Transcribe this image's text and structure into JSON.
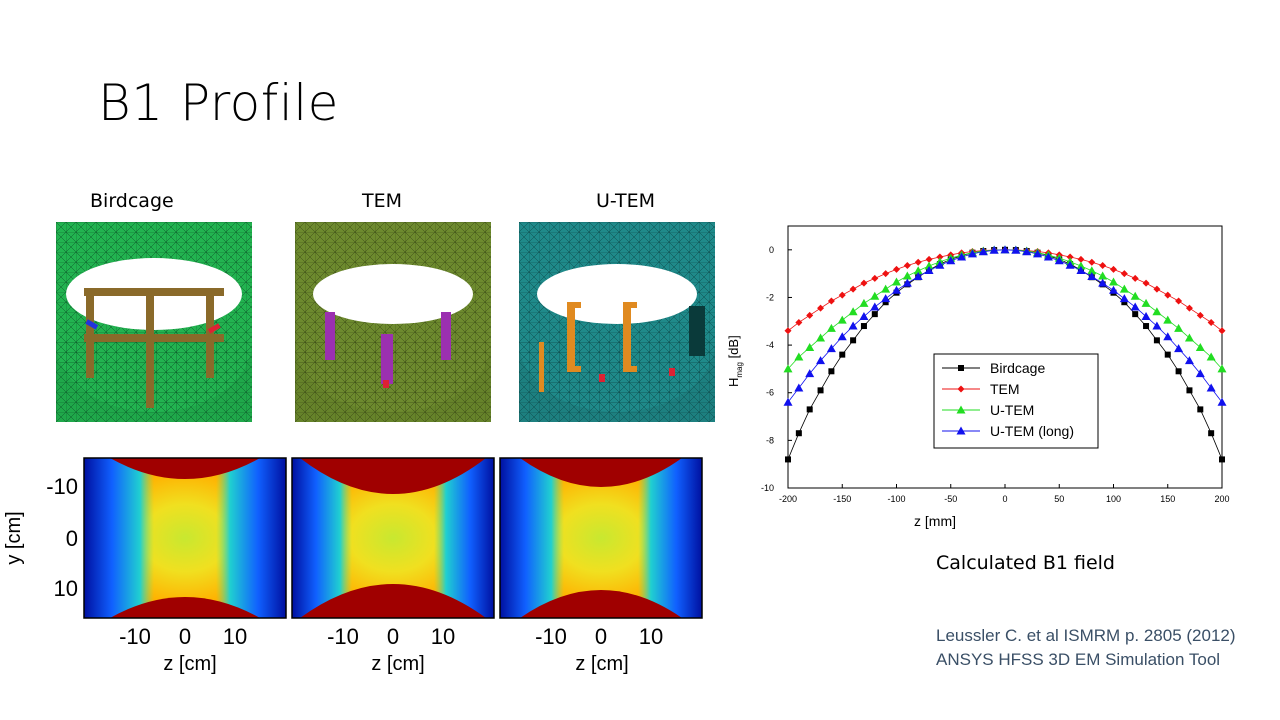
{
  "slide": {
    "title": "B1 Profile",
    "coils": [
      {
        "label": "Birdcage"
      },
      {
        "label": "TEM"
      },
      {
        "label": "U-TEM"
      }
    ],
    "maps": {
      "ylabel": "y [cm]",
      "xlabel": "z [cm]",
      "yticks": [
        "-10",
        "0",
        "10"
      ],
      "xticks": [
        "-10",
        "0",
        "10"
      ]
    },
    "caption": "Calculated B1 field",
    "references": [
      "Leussler C. et al ISMRM p. 2805 (2012)",
      "ANSYS HFSS 3D EM Simulation Tool"
    ]
  },
  "colors": {
    "birdcage": "#000000",
    "tem": "#ee1111",
    "utem": "#22dd22",
    "utem_long": "#1111ee"
  },
  "chart_data": {
    "type": "line",
    "xlabel": "z [mm]",
    "ylabel_main": "H",
    "ylabel_sub": "mag",
    "ylabel_unit": " [dB]",
    "xlim": [
      -200,
      200
    ],
    "ylim": [
      -10,
      1
    ],
    "xticks": [
      -200,
      -150,
      -100,
      -50,
      0,
      50,
      100,
      150,
      200
    ],
    "yticks": [
      0,
      -2,
      -4,
      -6,
      -8,
      -10
    ],
    "legend_position": "center-right",
    "x": [
      -200,
      -190,
      -180,
      -170,
      -160,
      -150,
      -140,
      -130,
      -120,
      -110,
      -100,
      -90,
      -80,
      -70,
      -60,
      -50,
      -40,
      -30,
      -20,
      -10,
      0,
      10,
      20,
      30,
      40,
      50,
      60,
      70,
      80,
      90,
      100,
      110,
      120,
      130,
      140,
      150,
      160,
      170,
      180,
      190,
      200
    ],
    "series": [
      {
        "name": "Birdcage",
        "marker": "square",
        "color": "#000000",
        "values": [
          -8.8,
          -7.7,
          -6.7,
          -5.9,
          -5.1,
          -4.4,
          -3.8,
          -3.2,
          -2.7,
          -2.2,
          -1.8,
          -1.45,
          -1.15,
          -0.85,
          -0.6,
          -0.4,
          -0.25,
          -0.12,
          -0.05,
          -0.01,
          0,
          -0.01,
          -0.05,
          -0.12,
          -0.25,
          -0.4,
          -0.6,
          -0.85,
          -1.15,
          -1.45,
          -1.8,
          -2.2,
          -2.7,
          -3.2,
          -3.8,
          -4.4,
          -5.1,
          -5.9,
          -6.7,
          -7.7,
          -8.8
        ]
      },
      {
        "name": "TEM",
        "marker": "diamond",
        "color": "#ee1111",
        "values": [
          -3.4,
          -3.05,
          -2.75,
          -2.45,
          -2.15,
          -1.9,
          -1.65,
          -1.4,
          -1.2,
          -1.0,
          -0.82,
          -0.66,
          -0.52,
          -0.4,
          -0.3,
          -0.21,
          -0.13,
          -0.07,
          -0.03,
          -0.01,
          0,
          -0.01,
          -0.03,
          -0.07,
          -0.13,
          -0.21,
          -0.3,
          -0.4,
          -0.52,
          -0.66,
          -0.82,
          -1.0,
          -1.2,
          -1.4,
          -1.65,
          -1.9,
          -2.15,
          -2.45,
          -2.75,
          -3.05,
          -3.4
        ]
      },
      {
        "name": "U-TEM",
        "marker": "triangle",
        "color": "#22dd22",
        "values": [
          -5.0,
          -4.5,
          -4.1,
          -3.7,
          -3.3,
          -2.95,
          -2.6,
          -2.25,
          -1.95,
          -1.65,
          -1.35,
          -1.1,
          -0.88,
          -0.68,
          -0.5,
          -0.35,
          -0.22,
          -0.12,
          -0.05,
          -0.01,
          0,
          -0.01,
          -0.05,
          -0.12,
          -0.22,
          -0.35,
          -0.5,
          -0.68,
          -0.88,
          -1.1,
          -1.35,
          -1.65,
          -1.95,
          -2.25,
          -2.6,
          -2.95,
          -3.3,
          -3.7,
          -4.1,
          -4.5,
          -5.0
        ]
      },
      {
        "name": "U-TEM (long)",
        "marker": "triangle",
        "color": "#1111ee",
        "values": [
          -6.4,
          -5.8,
          -5.2,
          -4.65,
          -4.15,
          -3.65,
          -3.2,
          -2.8,
          -2.4,
          -2.05,
          -1.7,
          -1.4,
          -1.12,
          -0.87,
          -0.65,
          -0.46,
          -0.3,
          -0.17,
          -0.08,
          -0.02,
          0,
          -0.02,
          -0.08,
          -0.17,
          -0.3,
          -0.46,
          -0.65,
          -0.87,
          -1.12,
          -1.4,
          -1.7,
          -2.05,
          -2.4,
          -2.8,
          -3.2,
          -3.65,
          -4.15,
          -4.65,
          -5.2,
          -5.8,
          -6.4
        ]
      }
    ]
  }
}
